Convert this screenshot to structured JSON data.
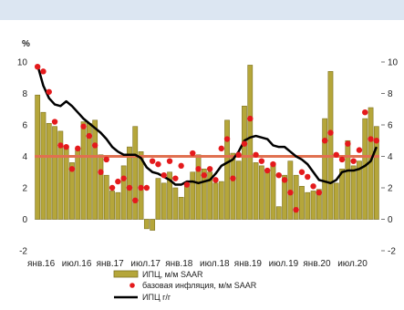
{
  "chart_data": {
    "type": "bar",
    "y_unit": "%",
    "ylim": [
      -2,
      10
    ],
    "y_ticks": [
      "10",
      "8",
      "6",
      "4",
      "2",
      "0",
      "-2"
    ],
    "right_ticks": [
      "10",
      "8",
      "6",
      "4",
      "2",
      "0",
      "-2"
    ],
    "x_tick_labels": [
      "янв.16",
      "июл.16",
      "янв.17",
      "июл.17",
      "янв.18",
      "июл.18",
      "янв.19",
      "июл.19",
      "янв.20",
      "июл.20"
    ],
    "colors": {
      "bars": "#b5a63a",
      "bars_edge": "#7d7220",
      "points": "#e41a1c",
      "line": "#000000",
      "hline": "#e07050"
    },
    "reference_line": 4,
    "series": [
      {
        "name": "ИПЦ, м/м SAAR",
        "type": "bar",
        "values": [
          7.9,
          6.8,
          6.1,
          5.9,
          5.6,
          4.6,
          3.6,
          4.5,
          6.2,
          6.1,
          6.3,
          4.1,
          2.8,
          1.8,
          1.7,
          3.4,
          4.6,
          5.9,
          4.3,
          -0.6,
          -0.7,
          2.6,
          2.3,
          3.0,
          2.0,
          1.4,
          2.1,
          3.0,
          4.1,
          3.2,
          3.0,
          2.3,
          2.4,
          6.3,
          4.2,
          3.7,
          7.2,
          9.8,
          3.6,
          3.4,
          3.0,
          3.6,
          0.8,
          2.8,
          3.7,
          2.8,
          2.1,
          1.7,
          1.8,
          1.9,
          6.4,
          9.4,
          2.3,
          3.2,
          5.0,
          3.4,
          3.7,
          6.4,
          7.1,
          5.9
        ]
      },
      {
        "name": "базовая инфляция, м/м SAAR",
        "type": "scatter",
        "values": [
          9.7,
          9.4,
          8.1,
          6.2,
          4.7,
          4.6,
          3.2,
          4.5,
          5.9,
          5.3,
          4.7,
          3.0,
          3.8,
          2.0,
          2.4,
          2.6,
          2.0,
          1.2,
          2.0,
          2.0,
          3.7,
          3.5,
          2.8,
          3.7,
          2.6,
          3.4,
          2.2,
          4.2,
          3.2,
          2.8,
          3.2,
          2.5,
          4.5,
          5.1,
          2.6,
          4.1,
          4.8,
          6.4,
          4.1,
          3.7,
          3.1,
          3.5,
          2.8,
          2.5,
          1.7,
          0.6,
          3.0,
          2.7,
          2.1,
          1.7,
          5.0,
          5.5,
          4.1,
          3.8,
          4.8,
          3.7,
          4.4,
          6.8,
          5.1,
          5.0
        ]
      },
      {
        "name": "ИПЦ г/г",
        "type": "line",
        "values": [
          9.8,
          8.5,
          7.7,
          7.3,
          7.2,
          7.5,
          7.2,
          6.8,
          6.4,
          6.1,
          5.8,
          5.5,
          5.1,
          4.6,
          4.3,
          4.1,
          4.1,
          4.1,
          3.9,
          3.3,
          3.0,
          2.9,
          2.7,
          2.5,
          2.2,
          2.2,
          2.4,
          2.4,
          2.3,
          2.4,
          2.5,
          2.9,
          3.4,
          3.6,
          3.8,
          4.3,
          5.0,
          5.2,
          5.3,
          5.2,
          5.1,
          4.7,
          4.6,
          4.6,
          4.3,
          4.0,
          3.8,
          3.5,
          3.0,
          2.5,
          2.4,
          2.3,
          2.5,
          3.0,
          3.1,
          3.1,
          3.2,
          3.4,
          3.7,
          4.6
        ]
      }
    ]
  }
}
